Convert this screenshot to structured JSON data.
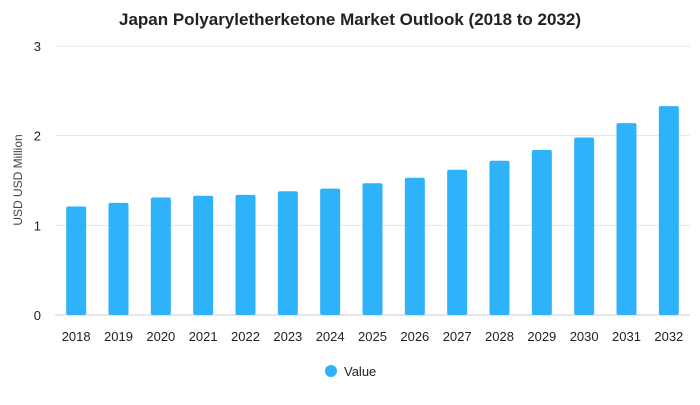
{
  "chart_data": {
    "type": "bar",
    "title": "Japan Polyaryletherketone Market Outlook (2018 to 2032)",
    "xlabel": "",
    "ylabel": "USD USD Million",
    "categories": [
      "2018",
      "2019",
      "2020",
      "2021",
      "2022",
      "2023",
      "2024",
      "2025",
      "2026",
      "2027",
      "2028",
      "2029",
      "2030",
      "2031",
      "2032"
    ],
    "series": [
      {
        "name": "Value",
        "values": [
          1.21,
          1.25,
          1.31,
          1.33,
          1.34,
          1.38,
          1.41,
          1.47,
          1.53,
          1.62,
          1.72,
          1.84,
          1.98,
          2.14,
          2.33
        ],
        "color": "#2eb2fa"
      }
    ],
    "ylim": [
      0,
      3
    ],
    "yticks": [
      "0",
      "1",
      "2",
      "3"
    ],
    "grid": true,
    "legend_position": "bottom"
  }
}
